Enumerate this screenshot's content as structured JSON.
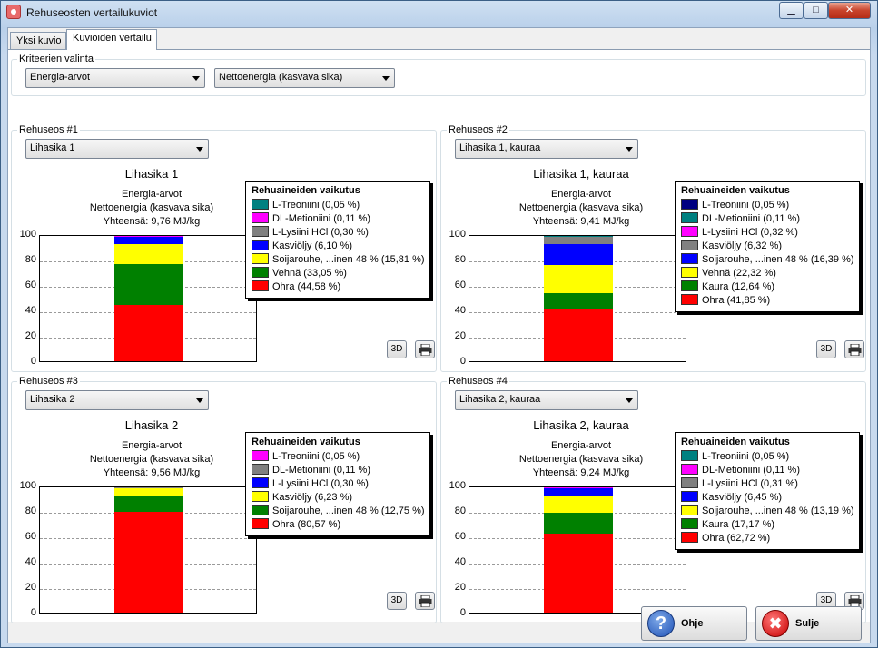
{
  "window": {
    "title": "Rehuseosten vertailukuviot",
    "minimize_glyph": "▁",
    "maximize_glyph": "□",
    "close_glyph": "✕"
  },
  "tabs": [
    {
      "label": "Yksi kuvio",
      "active": false
    },
    {
      "label": "Kuvioiden vertailu",
      "active": true
    }
  ],
  "criteria": {
    "label": "Kriteerien valinta",
    "select1": "Energia-arvot",
    "select2": "Nettoenergia (kasvava sika)"
  },
  "panels": [
    {
      "group": "Rehuseos #1",
      "select": "Lihasika 1",
      "title": "Lihasika 1",
      "sub1": "Energia-arvot",
      "sub2": "Nettoenergia (kasvava sika)",
      "sub3": "Yhteensä: 9,76 MJ/kg",
      "legend_title": "Rehuaineiden vaikutus",
      "legend": [
        {
          "label": "L-Treoniini (0,05 %)",
          "color": "#008080"
        },
        {
          "label": "DL-Metioniini (0,11 %)",
          "color": "#ff00ff"
        },
        {
          "label": "L-Lysiini HCl (0,30 %)",
          "color": "#808080"
        },
        {
          "label": "Kasviöljy (6,10 %)",
          "color": "#0000ff"
        },
        {
          "label": "Soijarouhe, ...inen 48 %  (15,81 %)",
          "color": "#ffff00"
        },
        {
          "label": "Vehnä (33,05 %)",
          "color": "#008000"
        },
        {
          "label": "Ohra (44,58 %)",
          "color": "#ff0000"
        }
      ],
      "btn3d": "3D",
      "print_icon": "printer-icon"
    },
    {
      "group": "Rehuseos #2",
      "select": "Lihasika 1, kauraa",
      "title": "Lihasika 1, kauraa",
      "sub1": "Energia-arvot",
      "sub2": "Nettoenergia (kasvava sika)",
      "sub3": "Yhteensä: 9,41 MJ/kg",
      "legend_title": "Rehuaineiden vaikutus",
      "legend": [
        {
          "label": "L-Treoniini (0,05 %)",
          "color": "#000080"
        },
        {
          "label": "DL-Metioniini (0,11 %)",
          "color": "#008080"
        },
        {
          "label": "L-Lysiini HCl (0,32 %)",
          "color": "#ff00ff"
        },
        {
          "label": "Kasviöljy (6,32 %)",
          "color": "#808080"
        },
        {
          "label": "Soijarouhe, ...inen 48 %  (16,39 %)",
          "color": "#0000ff"
        },
        {
          "label": "Vehnä (22,32 %)",
          "color": "#ffff00"
        },
        {
          "label": "Kaura (12,64 %)",
          "color": "#008000"
        },
        {
          "label": "Ohra (41,85 %)",
          "color": "#ff0000"
        }
      ],
      "btn3d": "3D",
      "print_icon": "printer-icon"
    },
    {
      "group": "Rehuseos #3",
      "select": "Lihasika 2",
      "title": "Lihasika 2",
      "sub1": "Energia-arvot",
      "sub2": "Nettoenergia (kasvava sika)",
      "sub3": "Yhteensä: 9,56 MJ/kg",
      "legend_title": "Rehuaineiden vaikutus",
      "legend": [
        {
          "label": "L-Treoniini (0,05 %)",
          "color": "#ff00ff"
        },
        {
          "label": "DL-Metioniini (0,11 %)",
          "color": "#808080"
        },
        {
          "label": "L-Lysiini HCl (0,30 %)",
          "color": "#0000ff"
        },
        {
          "label": "Kasviöljy (6,23 %)",
          "color": "#ffff00"
        },
        {
          "label": "Soijarouhe, ...inen 48 %  (12,75 %)",
          "color": "#008000"
        },
        {
          "label": "Ohra (80,57 %)",
          "color": "#ff0000"
        }
      ],
      "btn3d": "3D",
      "print_icon": "printer-icon"
    },
    {
      "group": "Rehuseos #4",
      "select": "Lihasika 2, kauraa",
      "title": "Lihasika 2, kauraa",
      "sub1": "Energia-arvot",
      "sub2": "Nettoenergia (kasvava sika)",
      "sub3": "Yhteensä: 9,24 MJ/kg",
      "legend_title": "Rehuaineiden vaikutus",
      "legend": [
        {
          "label": "L-Treoniini (0,05 %)",
          "color": "#008080"
        },
        {
          "label": "DL-Metioniini (0,11 %)",
          "color": "#ff00ff"
        },
        {
          "label": "L-Lysiini HCl (0,31 %)",
          "color": "#808080"
        },
        {
          "label": "Kasviöljy (6,45 %)",
          "color": "#0000ff"
        },
        {
          "label": "Soijarouhe, ...inen 48 %  (13,19 %)",
          "color": "#ffff00"
        },
        {
          "label": "Kaura (17,17 %)",
          "color": "#008000"
        },
        {
          "label": "Ohra (62,72 %)",
          "color": "#ff0000"
        }
      ],
      "btn3d": "3D",
      "print_icon": "printer-icon"
    }
  ],
  "footer": {
    "help_label": "Ohje",
    "help_icon": "help-icon",
    "close_label": "Sulje",
    "close_icon": "close-icon"
  },
  "chart_data": [
    {
      "type": "bar",
      "stacked": true,
      "categories": [
        "Lihasika 1"
      ],
      "ylim": [
        0,
        100
      ],
      "yticks": [
        0,
        20,
        40,
        60,
        80,
        100
      ],
      "grid": true,
      "series": [
        {
          "name": "Ohra (44,58 %)",
          "values": [
            44.58
          ],
          "color": "#ff0000"
        },
        {
          "name": "Vehnä (33,05 %)",
          "values": [
            33.05
          ],
          "color": "#008000"
        },
        {
          "name": "Soijarouhe, ...inen 48 %  (15,81 %)",
          "values": [
            15.81
          ],
          "color": "#ffff00"
        },
        {
          "name": "Kasviöljy (6,10 %)",
          "values": [
            6.1
          ],
          "color": "#0000ff"
        },
        {
          "name": "L-Lysiini HCl (0,30 %)",
          "values": [
            0.3
          ],
          "color": "#808080"
        },
        {
          "name": "DL-Metioniini (0,11 %)",
          "values": [
            0.11
          ],
          "color": "#ff00ff"
        },
        {
          "name": "L-Treoniini (0,05 %)",
          "values": [
            0.05
          ],
          "color": "#008080"
        }
      ]
    },
    {
      "type": "bar",
      "stacked": true,
      "categories": [
        "Lihasika 1, kauraa"
      ],
      "ylim": [
        0,
        100
      ],
      "yticks": [
        0,
        20,
        40,
        60,
        80,
        100
      ],
      "grid": true,
      "series": [
        {
          "name": "Ohra (41,85 %)",
          "values": [
            41.85
          ],
          "color": "#ff0000"
        },
        {
          "name": "Kaura (12,64 %)",
          "values": [
            12.64
          ],
          "color": "#008000"
        },
        {
          "name": "Vehnä (22,32 %)",
          "values": [
            22.32
          ],
          "color": "#ffff00"
        },
        {
          "name": "Soijarouhe, ...inen 48 %  (16,39 %)",
          "values": [
            16.39
          ],
          "color": "#0000ff"
        },
        {
          "name": "Kasviöljy (6,32 %)",
          "values": [
            6.32
          ],
          "color": "#808080"
        },
        {
          "name": "L-Lysiini HCl (0,32 %)",
          "values": [
            0.32
          ],
          "color": "#ff00ff"
        },
        {
          "name": "DL-Metioniini (0,11 %)",
          "values": [
            0.11
          ],
          "color": "#008080"
        },
        {
          "name": "L-Treoniini (0,05 %)",
          "values": [
            0.05
          ],
          "color": "#000080"
        }
      ]
    },
    {
      "type": "bar",
      "stacked": true,
      "categories": [
        "Lihasika 2"
      ],
      "ylim": [
        0,
        100
      ],
      "yticks": [
        0,
        20,
        40,
        60,
        80,
        100
      ],
      "grid": true,
      "series": [
        {
          "name": "Ohra (80,57 %)",
          "values": [
            80.57
          ],
          "color": "#ff0000"
        },
        {
          "name": "Soijarouhe, ...inen 48 %  (12,75 %)",
          "values": [
            12.75
          ],
          "color": "#008000"
        },
        {
          "name": "Kasviöljy (6,23 %)",
          "values": [
            6.23
          ],
          "color": "#ffff00"
        },
        {
          "name": "L-Lysiini HCl (0,30 %)",
          "values": [
            0.3
          ],
          "color": "#0000ff"
        },
        {
          "name": "DL-Metioniini (0,11 %)",
          "values": [
            0.11
          ],
          "color": "#808080"
        },
        {
          "name": "L-Treoniini (0,05 %)",
          "values": [
            0.05
          ],
          "color": "#ff00ff"
        }
      ]
    },
    {
      "type": "bar",
      "stacked": true,
      "categories": [
        "Lihasika 2, kauraa"
      ],
      "ylim": [
        0,
        100
      ],
      "yticks": [
        0,
        20,
        40,
        60,
        80,
        100
      ],
      "grid": true,
      "series": [
        {
          "name": "Ohra (62,72 %)",
          "values": [
            62.72
          ],
          "color": "#ff0000"
        },
        {
          "name": "Kaura (17,17 %)",
          "values": [
            17.17
          ],
          "color": "#008000"
        },
        {
          "name": "Soijarouhe, ...inen 48 %  (13,19 %)",
          "values": [
            13.19
          ],
          "color": "#ffff00"
        },
        {
          "name": "Kasviöljy (6,45 %)",
          "values": [
            6.45
          ],
          "color": "#0000ff"
        },
        {
          "name": "L-Lysiini HCl (0,31 %)",
          "values": [
            0.31
          ],
          "color": "#808080"
        },
        {
          "name": "DL-Metioniini (0,11 %)",
          "values": [
            0.11
          ],
          "color": "#ff00ff"
        },
        {
          "name": "L-Treoniini (0,05 %)",
          "values": [
            0.05
          ],
          "color": "#008080"
        }
      ]
    }
  ]
}
